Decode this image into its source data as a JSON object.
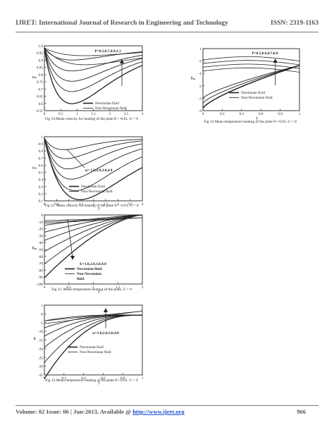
{
  "header": {
    "journal": "IJRET: International Journal of Research in Engineering and Technology",
    "issn": "ISSN: 2319-1163"
  },
  "footer": {
    "volume_prefix": "Volume: 02 Issue: 06 | Jun-2013, Available @ ",
    "url": "http://www.ijret.org",
    "page": "966"
  },
  "colors": {
    "ink": "#222222",
    "header_text": "#555555",
    "link": "#1a4fd0"
  },
  "figures": [
    {
      "id": "fig10",
      "caption": "Fig 10.Mean velocity for heating of the plate E= -0.01, G = 0",
      "ylabel": "uₘ",
      "xlabel": "",
      "x_ticks": [
        "0",
        "0.5",
        "1",
        "1.5",
        "2",
        "2.5",
        "3"
      ],
      "y_ticks": [
        "1.0",
        "0.95",
        "0.9",
        "0.85",
        "0.8",
        "0.75",
        "0.7",
        "0.65",
        "0.6",
        "0.55"
      ],
      "annotation": "P=0.5,0.7,0.9,1.1",
      "legend": [
        "Newtonian fluid",
        "Non-Newtonian fluid"
      ]
    },
    {
      "id": "fig11",
      "caption": "Fig 11. Mean velocity for heating of the plate E= -0.01, G = 0",
      "ylabel": "uₘ",
      "xlabel": "y",
      "x_ticks": [
        "0",
        "0.5",
        "1",
        "1.5",
        "2",
        "2.5",
        "3",
        "3.5",
        "4"
      ],
      "y_ticks": [
        "1",
        "0.9",
        "0.8",
        "0.7",
        "0.6",
        "0.5",
        "0.4",
        "0.3",
        "0.2",
        "0.1"
      ],
      "annotation": "φ= 1.0,2.0,3.0,4.0",
      "legend": [
        "Newtonian fluid",
        "Non-Newtonian fluid"
      ]
    },
    {
      "id": "fig12",
      "caption": "Fig 12. Mean temperature heating of the plate, G = 0",
      "ylabel": "θₘ",
      "xlabel": "y",
      "x_ticks": [
        "0",
        "0.5",
        "1",
        "1.5",
        "2"
      ],
      "y_ticks": [
        "0",
        "-10",
        "-20",
        "-30",
        "-40",
        "-50",
        "-60",
        "-70",
        "-80",
        "-90",
        "-100"
      ],
      "annotation": "E=1.0,2.0,3.0,4.0",
      "legend": [
        "Newtonian fluid",
        "Non-Newtonian",
        "fluid"
      ]
    },
    {
      "id": "fig13",
      "caption": "Fig 13.Mean temperature heating of the plate E=-0.01, G = 0",
      "ylabel": "θ",
      "xlabel": "y",
      "x_ticks": [
        "0",
        "0.2",
        "0.4",
        "0.6",
        "0.8",
        "1"
      ],
      "y_ticks": [
        "5",
        "0",
        "-5",
        "-10",
        "-15",
        "-20",
        "-25",
        "-30",
        "-35"
      ],
      "annotation": "φ=1.0,2.0,3.0,4.0",
      "legend": [
        "Newtonian fluid",
        "Non-Newtonian fluid"
      ]
    },
    {
      "id": "fig14",
      "caption": "Fig 14 Mean temperature heating of the plate E=-0.01, G = 0",
      "ylabel": "θₘ",
      "xlabel": "y",
      "x_ticks": [
        "0",
        "0.2",
        "0.4",
        "0.6",
        "0.8",
        "1"
      ],
      "y_ticks": [
        "1",
        "0",
        "-1",
        "-2",
        "-3",
        "-4"
      ],
      "annotation": "P=0.5,0.6,0.7,0.8",
      "legend": [
        "Newtonian fluid",
        "Non-Newtonian fluid"
      ]
    }
  ]
}
